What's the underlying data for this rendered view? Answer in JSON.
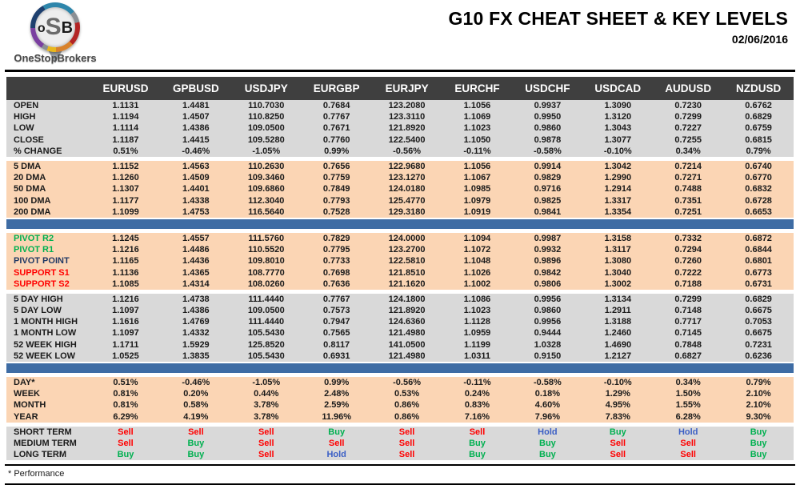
{
  "brand": {
    "mark_o": "o",
    "mark_s": "S",
    "mark_b": "B",
    "name": "OneStopBrokers"
  },
  "header": {
    "title": "G10 FX CHEAT SHEET & KEY LEVELS",
    "date": "02/06/2016"
  },
  "table": {
    "columns": [
      "EURUSD",
      "GPBUSD",
      "USDJPY",
      "EURGBP",
      "EURJPY",
      "EURCHF",
      "USDCHF",
      "USDCAD",
      "AUDUSD",
      "NZDUSD"
    ],
    "sections": [
      {
        "id": "ohlc",
        "theme": "gray",
        "rows": [
          {
            "label": "OPEN",
            "values": [
              "1.1131",
              "1.4481",
              "110.7030",
              "0.7684",
              "123.2080",
              "1.1056",
              "0.9937",
              "1.3090",
              "0.7230",
              "0.6762"
            ]
          },
          {
            "label": "HIGH",
            "values": [
              "1.1194",
              "1.4507",
              "110.8250",
              "0.7767",
              "123.3110",
              "1.1069",
              "0.9950",
              "1.3120",
              "0.7299",
              "0.6829"
            ]
          },
          {
            "label": "LOW",
            "values": [
              "1.1114",
              "1.4386",
              "109.0500",
              "0.7671",
              "121.8920",
              "1.1023",
              "0.9860",
              "1.3043",
              "0.7227",
              "0.6759"
            ]
          },
          {
            "label": "CLOSE",
            "values": [
              "1.1187",
              "1.4415",
              "109.5280",
              "0.7760",
              "122.5400",
              "1.1050",
              "0.9878",
              "1.3077",
              "0.7255",
              "0.6815"
            ]
          },
          {
            "label": "% CHANGE",
            "values": [
              "0.51%",
              "-0.46%",
              "-1.05%",
              "0.99%",
              "-0.56%",
              "-0.11%",
              "-0.58%",
              "-0.10%",
              "0.34%",
              "0.79%"
            ]
          }
        ]
      },
      {
        "id": "moving-averages",
        "theme": "peach",
        "divider_after": true,
        "rows": [
          {
            "label": "5 DMA",
            "values": [
              "1.1152",
              "1.4563",
              "110.2630",
              "0.7656",
              "122.9680",
              "1.1056",
              "0.9914",
              "1.3042",
              "0.7214",
              "0.6740"
            ]
          },
          {
            "label": "20 DMA",
            "values": [
              "1.1260",
              "1.4509",
              "109.3460",
              "0.7759",
              "123.1270",
              "1.1067",
              "0.9829",
              "1.2990",
              "0.7271",
              "0.6770"
            ]
          },
          {
            "label": "50 DMA",
            "values": [
              "1.1307",
              "1.4401",
              "109.6860",
              "0.7849",
              "124.0180",
              "1.0985",
              "0.9716",
              "1.2914",
              "0.7488",
              "0.6832"
            ]
          },
          {
            "label": "100 DMA",
            "values": [
              "1.1177",
              "1.4338",
              "112.3040",
              "0.7793",
              "125.4770",
              "1.0979",
              "0.9825",
              "1.3317",
              "0.7351",
              "0.6728"
            ]
          },
          {
            "label": "200 DMA",
            "values": [
              "1.1099",
              "1.4753",
              "116.5640",
              "0.7528",
              "129.3180",
              "1.0919",
              "0.9841",
              "1.3354",
              "0.7251",
              "0.6653"
            ]
          }
        ]
      },
      {
        "id": "pivots",
        "theme": "peach",
        "rows": [
          {
            "label": "PIVOT R2",
            "label_color": "green",
            "values": [
              "1.1245",
              "1.4557",
              "111.5760",
              "0.7829",
              "124.0000",
              "1.1094",
              "0.9987",
              "1.3158",
              "0.7332",
              "0.6872"
            ]
          },
          {
            "label": "PIVOT R1",
            "label_color": "green",
            "values": [
              "1.1216",
              "1.4486",
              "110.5520",
              "0.7795",
              "123.2700",
              "1.1072",
              "0.9932",
              "1.3117",
              "0.7294",
              "0.6844"
            ]
          },
          {
            "label": "PIVOT POINT",
            "label_color": "navy",
            "values": [
              "1.1165",
              "1.4436",
              "109.8010",
              "0.7733",
              "122.5810",
              "1.1048",
              "0.9896",
              "1.3080",
              "0.7260",
              "0.6801"
            ]
          },
          {
            "label": "SUPPORT S1",
            "label_color": "red",
            "values": [
              "1.1136",
              "1.4365",
              "108.7770",
              "0.7698",
              "121.8510",
              "1.1026",
              "0.9842",
              "1.3040",
              "0.7222",
              "0.6773"
            ]
          },
          {
            "label": "SUPPORT S2",
            "label_color": "red",
            "values": [
              "1.1085",
              "1.4314",
              "108.0260",
              "0.7636",
              "121.1620",
              "1.1002",
              "0.9806",
              "1.3002",
              "0.7188",
              "0.6731"
            ]
          }
        ]
      },
      {
        "id": "ranges",
        "theme": "gray",
        "divider_after": true,
        "rows": [
          {
            "label": "5 DAY HIGH",
            "values": [
              "1.1216",
              "1.4738",
              "111.4440",
              "0.7767",
              "124.1800",
              "1.1086",
              "0.9956",
              "1.3134",
              "0.7299",
              "0.6829"
            ]
          },
          {
            "label": "5 DAY LOW",
            "values": [
              "1.1097",
              "1.4386",
              "109.0500",
              "0.7573",
              "121.8920",
              "1.1023",
              "0.9860",
              "1.2911",
              "0.7148",
              "0.6675"
            ]
          },
          {
            "label": "1 MONTH HIGH",
            "values": [
              "1.1616",
              "1.4769",
              "111.4440",
              "0.7947",
              "124.6360",
              "1.1128",
              "0.9956",
              "1.3188",
              "0.7717",
              "0.7053"
            ]
          },
          {
            "label": "1 MONTH LOW",
            "values": [
              "1.1097",
              "1.4332",
              "105.5430",
              "0.7565",
              "121.4980",
              "1.0959",
              "0.9444",
              "1.2460",
              "0.7145",
              "0.6675"
            ]
          },
          {
            "label": "52 WEEK HIGH",
            "values": [
              "1.1711",
              "1.5929",
              "125.8520",
              "0.8117",
              "141.0500",
              "1.1199",
              "1.0328",
              "1.4690",
              "0.7848",
              "0.7231"
            ]
          },
          {
            "label": "52 WEEK LOW",
            "values": [
              "1.0525",
              "1.3835",
              "105.5430",
              "0.6931",
              "121.4980",
              "1.0311",
              "0.9150",
              "1.2127",
              "0.6827",
              "0.6236"
            ]
          }
        ]
      },
      {
        "id": "performance",
        "theme": "peach",
        "rows": [
          {
            "label": "DAY*",
            "values": [
              "0.51%",
              "-0.46%",
              "-1.05%",
              "0.99%",
              "-0.56%",
              "-0.11%",
              "-0.58%",
              "-0.10%",
              "0.34%",
              "0.79%"
            ]
          },
          {
            "label": "WEEK",
            "values": [
              "0.81%",
              "0.20%",
              "0.44%",
              "2.48%",
              "0.53%",
              "0.24%",
              "0.18%",
              "1.29%",
              "1.50%",
              "2.10%"
            ]
          },
          {
            "label": "MONTH",
            "values": [
              "0.81%",
              "0.58%",
              "3.78%",
              "2.59%",
              "0.86%",
              "0.83%",
              "4.60%",
              "4.95%",
              "1.55%",
              "2.10%"
            ]
          },
          {
            "label": "YEAR",
            "values": [
              "6.29%",
              "4.19%",
              "3.78%",
              "11.96%",
              "0.86%",
              "7.16%",
              "7.96%",
              "7.83%",
              "6.28%",
              "9.30%"
            ]
          }
        ]
      },
      {
        "id": "recommendations",
        "theme": "gray",
        "value_style": "signal",
        "rows": [
          {
            "label": "SHORT TERM",
            "values": [
              "Sell",
              "Sell",
              "Sell",
              "Buy",
              "Sell",
              "Sell",
              "Hold",
              "Buy",
              "Hold",
              "Buy"
            ]
          },
          {
            "label": "MEDIUM TERM",
            "values": [
              "Sell",
              "Buy",
              "Sell",
              "Sell",
              "Sell",
              "Buy",
              "Buy",
              "Sell",
              "Sell",
              "Buy"
            ]
          },
          {
            "label": "LONG TERM",
            "values": [
              "Buy",
              "Buy",
              "Sell",
              "Hold",
              "Sell",
              "Buy",
              "Buy",
              "Sell",
              "Sell",
              "Buy"
            ]
          }
        ]
      }
    ]
  },
  "footer": {
    "note": "* Performance"
  },
  "colors": {
    "header_bg": "#3F3F3F",
    "gray_bg": "#D9D9D9",
    "peach_bg": "#FBD5B4",
    "divider_blue": "#3E6CA4",
    "buy_green": "#00B050",
    "sell_red": "#FF0000",
    "hold_blue": "#3B5FC5",
    "pivot_navy": "#1F3864"
  }
}
